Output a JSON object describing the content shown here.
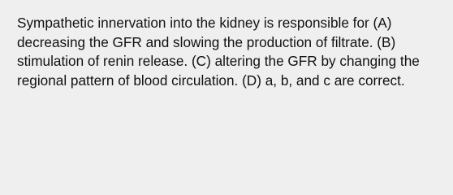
{
  "question": {
    "lines": [
      "Sympathetic innervation into the kidney is responsible for (A)",
      "decreasing the GFR and slowing the production of filtrate. (B)",
      "stimulation of renin release. (C) altering the GFR by changing the",
      "regional pattern of blood circulation. (D) a, b, and c are correct."
    ]
  }
}
